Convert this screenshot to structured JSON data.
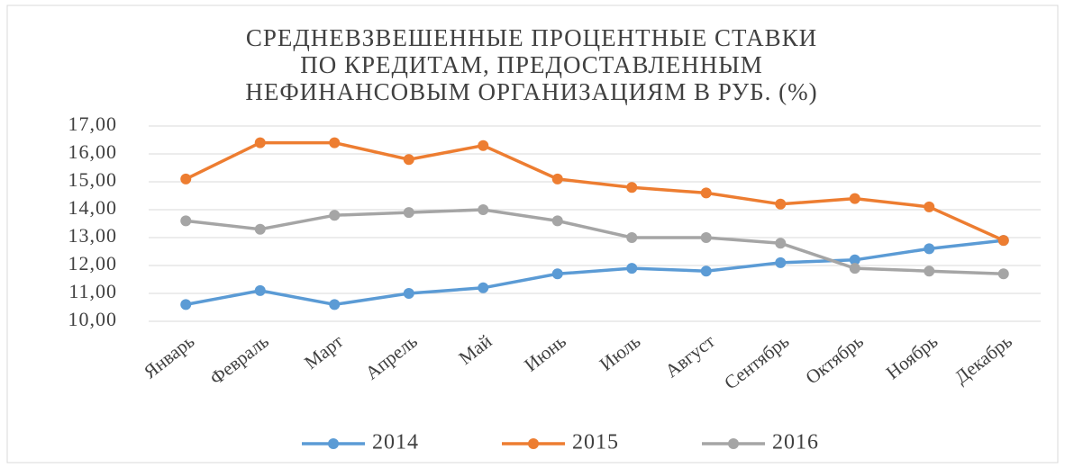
{
  "chart_data": {
    "type": "line",
    "title": [
      "СРЕДНЕВЗВЕШЕННЫЕ ПРОЦЕНТНЫЕ СТАВКИ",
      "ПО КРЕДИТАМ, ПРЕДОСТАВЛЕННЫМ",
      "НЕФИНАНСОВЫМ ОРГАНИЗАЦИЯМ В РУБ. (%)"
    ],
    "categories": [
      "Январь",
      "Февраль",
      "Март",
      "Апрель",
      "Май",
      "Июнь",
      "Июль",
      "Август",
      "Сентябрь",
      "Октябрь",
      "Ноябрь",
      "Декабрь"
    ],
    "series": [
      {
        "name": "2014",
        "color": "#5b9bd5",
        "values": [
          10.6,
          11.1,
          10.6,
          11.0,
          11.2,
          11.7,
          11.9,
          11.8,
          12.1,
          12.2,
          12.6,
          12.9
        ]
      },
      {
        "name": "2015",
        "color": "#ed7d31",
        "values": [
          15.1,
          16.4,
          16.4,
          15.8,
          16.3,
          15.1,
          14.8,
          14.6,
          14.2,
          14.4,
          14.1,
          12.9
        ]
      },
      {
        "name": "2016",
        "color": "#a5a5a5",
        "values": [
          13.6,
          13.3,
          13.8,
          13.9,
          14.0,
          13.6,
          13.0,
          13.0,
          12.8,
          11.9,
          11.8,
          11.7
        ]
      }
    ],
    "ylim": [
      10,
      17
    ],
    "yticks": [
      {
        "value": 10,
        "label": "10,00"
      },
      {
        "value": 11,
        "label": "11,00"
      },
      {
        "value": 12,
        "label": "12,00"
      },
      {
        "value": 13,
        "label": "13,00"
      },
      {
        "value": 14,
        "label": "14,00"
      },
      {
        "value": 15,
        "label": "15,00"
      },
      {
        "value": 16,
        "label": "16,00"
      },
      {
        "value": 17,
        "label": "17,00"
      }
    ],
    "grid": true,
    "legend": "bottom"
  }
}
